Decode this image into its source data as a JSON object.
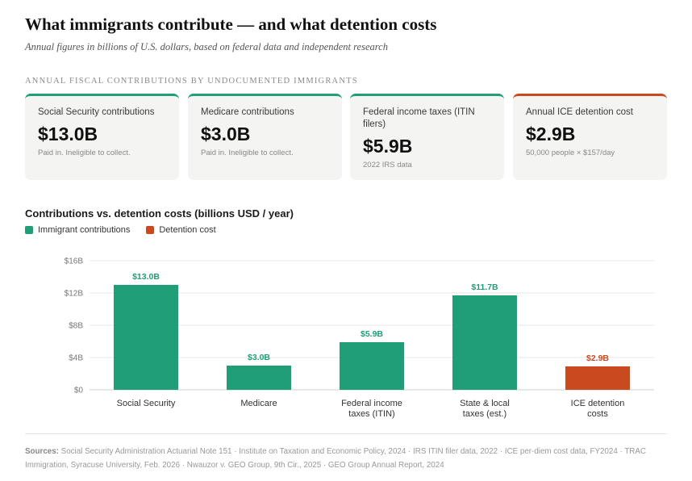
{
  "header": {
    "title": "What immigrants contribute — and what detention costs",
    "subtitle": "Annual figures in billions of U.S. dollars, based on federal data and independent research",
    "section_label": "ANNUAL FISCAL CONTRIBUTIONS BY UNDOCUMENTED IMMIGRANTS"
  },
  "cards": [
    {
      "label": "Social Security contributions",
      "value": "$13.0B",
      "note": "Paid in. Ineligible to collect.",
      "kind": "contribution"
    },
    {
      "label": "Medicare contributions",
      "value": "$3.0B",
      "note": "Paid in. Ineligible to collect.",
      "kind": "contribution"
    },
    {
      "label": "Federal income taxes (ITIN filers)",
      "value": "$5.9B",
      "note": "2022 IRS data",
      "kind": "contribution"
    },
    {
      "label": "Annual ICE detention cost",
      "value": "$2.9B",
      "note": "50,000 people × $157/day",
      "kind": "cost"
    }
  ],
  "colors": {
    "contribution": "#1f9e77",
    "cost": "#c94a1f",
    "grid": "#e6e6e6",
    "axis_text": "#777777"
  },
  "chart_data": {
    "type": "bar",
    "title": "Contributions vs. detention costs (billions USD / year)",
    "categories": [
      [
        "Social Security"
      ],
      [
        "Medicare"
      ],
      [
        "Federal income",
        "taxes (ITIN)"
      ],
      [
        "State & local",
        "taxes (est.)"
      ],
      [
        "ICE detention",
        "costs"
      ]
    ],
    "values": [
      13.0,
      3.0,
      5.9,
      11.7,
      2.9
    ],
    "value_labels": [
      "$13.0B",
      "$3.0B",
      "$5.9B",
      "$11.7B",
      "$2.9B"
    ],
    "series_kind": [
      "contribution",
      "contribution",
      "contribution",
      "contribution",
      "cost"
    ],
    "legend": [
      {
        "label": "Immigrant contributions",
        "kind": "contribution"
      },
      {
        "label": "Detention cost",
        "kind": "cost"
      }
    ],
    "legend_position": "top-left",
    "yticks": [
      "$0",
      "$4B",
      "$8B",
      "$12B",
      "$16B"
    ],
    "ytick_values": [
      0,
      4,
      8,
      12,
      16
    ],
    "ylim": [
      0,
      16
    ],
    "grid": true
  },
  "sources": {
    "label": "Sources:",
    "text": "Social Security Administration Actuarial Note 151 · Institute on Taxation and Economic Policy, 2024 · IRS ITIN filer data, 2022 · ICE per-diem cost data, FY2024 · TRAC Immigration, Syracuse University, Feb. 2026 · Nwauzor v. GEO Group, 9th Cir., 2025 · GEO Group Annual Report, 2024"
  }
}
